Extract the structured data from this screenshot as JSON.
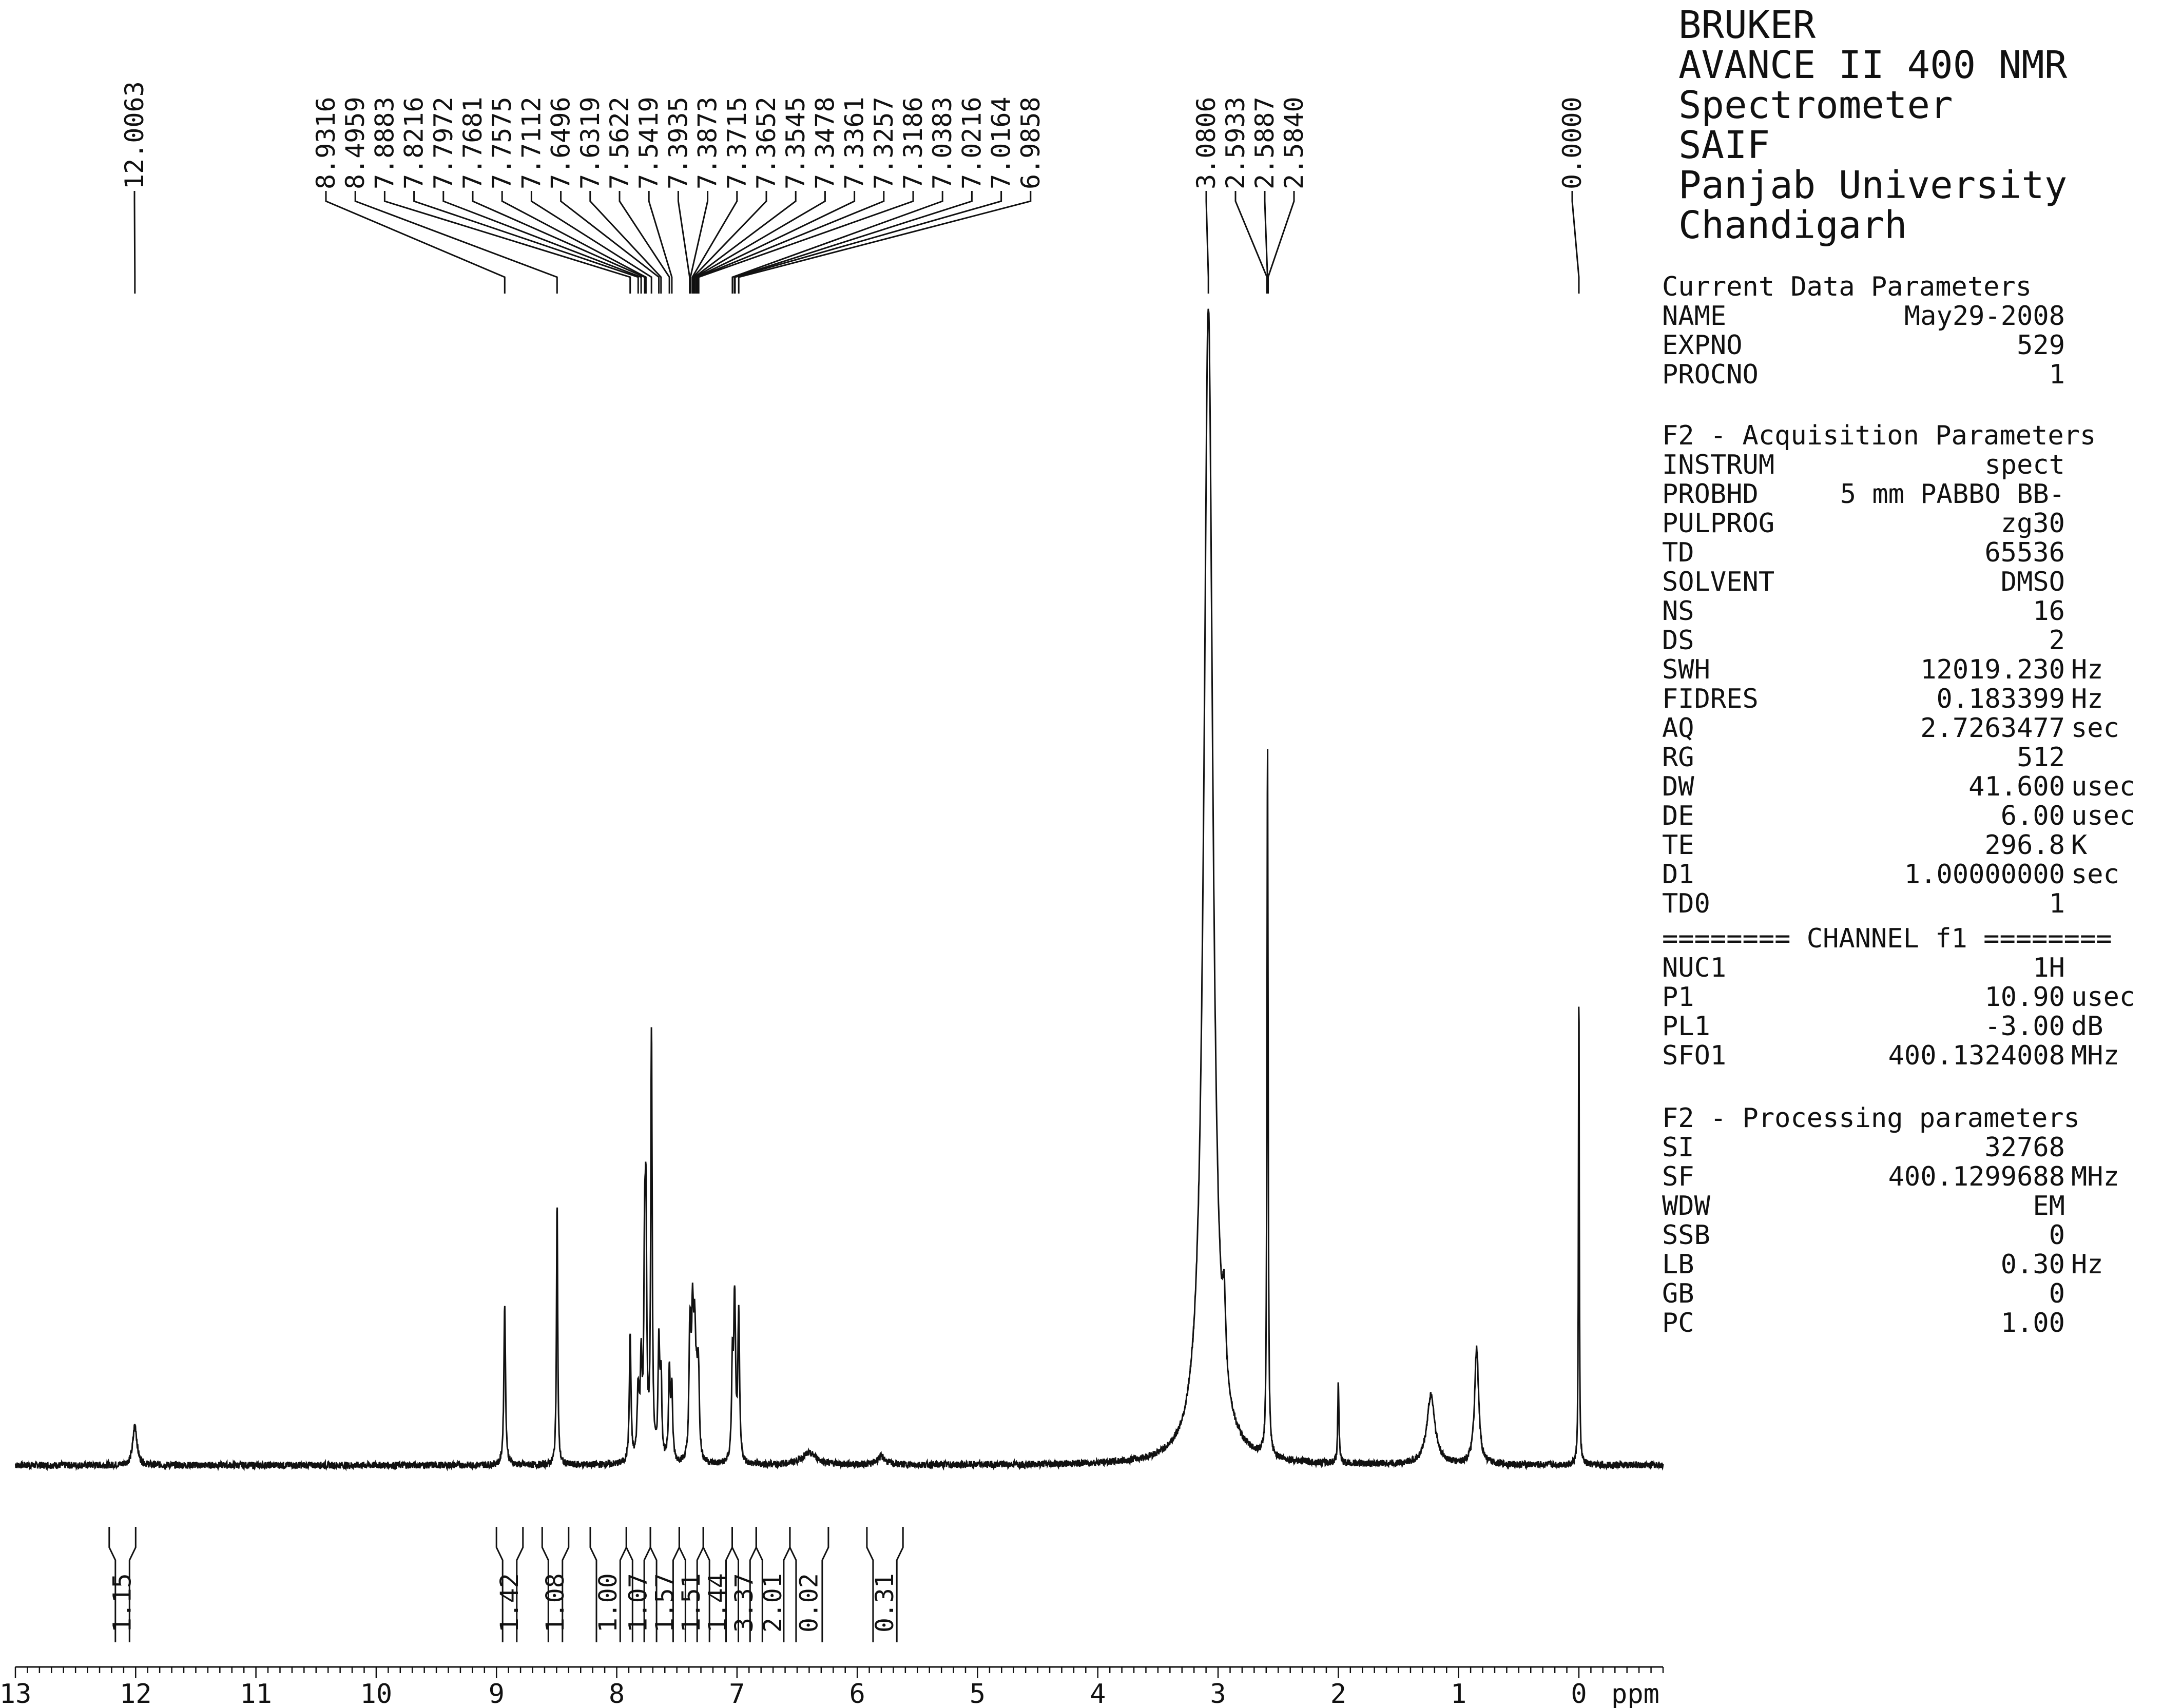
{
  "header_lines": [
    "BRUKER",
    "AVANCE II 400 NMR",
    "Spectrometer",
    "SAIF",
    "Panjab University",
    "Chandigarh"
  ],
  "current_data": {
    "title": "Current Data Parameters",
    "rows": [
      {
        "key": "NAME",
        "value": "May29-2008",
        "unit": ""
      },
      {
        "key": "EXPNO",
        "value": "529",
        "unit": ""
      },
      {
        "key": "PROCNO",
        "value": "1",
        "unit": ""
      }
    ]
  },
  "acquisition": {
    "title": "F2 - Acquisition Parameters",
    "rows": [
      {
        "key": "INSTRUM",
        "value": "spect",
        "unit": ""
      },
      {
        "key": "PROBHD",
        "value": "5 mm PABBO BB-",
        "unit": ""
      },
      {
        "key": "PULPROG",
        "value": "zg30",
        "unit": ""
      },
      {
        "key": "TD",
        "value": "65536",
        "unit": ""
      },
      {
        "key": "SOLVENT",
        "value": "DMSO",
        "unit": ""
      },
      {
        "key": "NS",
        "value": "16",
        "unit": ""
      },
      {
        "key": "DS",
        "value": "2",
        "unit": ""
      },
      {
        "key": "SWH",
        "value": "12019.230",
        "unit": "Hz"
      },
      {
        "key": "FIDRES",
        "value": "0.183399",
        "unit": "Hz"
      },
      {
        "key": "AQ",
        "value": "2.7263477",
        "unit": "sec"
      },
      {
        "key": "RG",
        "value": "512",
        "unit": ""
      },
      {
        "key": "DW",
        "value": "41.600",
        "unit": "usec"
      },
      {
        "key": "DE",
        "value": "6.00",
        "unit": "usec"
      },
      {
        "key": "TE",
        "value": "296.8",
        "unit": "K"
      },
      {
        "key": "D1",
        "value": "1.00000000",
        "unit": "sec"
      },
      {
        "key": "TD0",
        "value": "1",
        "unit": ""
      }
    ]
  },
  "channel": {
    "title": "======== CHANNEL f1 ========",
    "rows": [
      {
        "key": "NUC1",
        "value": "1H",
        "unit": ""
      },
      {
        "key": "P1",
        "value": "10.90",
        "unit": "usec"
      },
      {
        "key": "PL1",
        "value": "-3.00",
        "unit": "dB"
      },
      {
        "key": "SFO1",
        "value": "400.1324008",
        "unit": "MHz"
      }
    ]
  },
  "processing": {
    "title": "F2 - Processing parameters",
    "rows": [
      {
        "key": "SI",
        "value": "32768",
        "unit": ""
      },
      {
        "key": "SF",
        "value": "400.1299688",
        "unit": "MHz"
      },
      {
        "key": "WDW",
        "value": "EM",
        "unit": ""
      },
      {
        "key": "SSB",
        "value": "0",
        "unit": ""
      },
      {
        "key": "LB",
        "value": "0.30",
        "unit": "Hz"
      },
      {
        "key": "GB",
        "value": "0",
        "unit": ""
      },
      {
        "key": "PC",
        "value": "1.00",
        "unit": ""
      }
    ]
  },
  "chart_data": {
    "type": "line",
    "xlabel": "ppm",
    "xlim": [
      13.0,
      -0.7
    ],
    "x_reversed": true,
    "x_ticks": [
      13,
      12,
      11,
      10,
      9,
      8,
      7,
      6,
      5,
      4,
      3,
      2,
      1,
      0
    ],
    "ylim": [
      0,
      1.0
    ],
    "y_axis_shown": false,
    "grid": false,
    "colors": {
      "trace": "#111111",
      "baseline": "#111111"
    },
    "peaks": [
      {
        "ppm": 12.0063,
        "height": 0.035,
        "width": 0.02
      },
      {
        "ppm": 8.9316,
        "height": 0.14,
        "width": 0.008
      },
      {
        "ppm": 8.4959,
        "height": 0.23,
        "width": 0.006
      },
      {
        "ppm": 7.8883,
        "height": 0.11,
        "width": 0.008
      },
      {
        "ppm": 7.8216,
        "height": 0.06,
        "width": 0.01
      },
      {
        "ppm": 7.7972,
        "height": 0.08,
        "width": 0.008
      },
      {
        "ppm": 7.7681,
        "height": 0.15,
        "width": 0.008
      },
      {
        "ppm": 7.7575,
        "height": 0.19,
        "width": 0.008
      },
      {
        "ppm": 7.7112,
        "height": 0.37,
        "width": 0.007
      },
      {
        "ppm": 7.6496,
        "height": 0.1,
        "width": 0.008
      },
      {
        "ppm": 7.6319,
        "height": 0.07,
        "width": 0.008
      },
      {
        "ppm": 7.5622,
        "height": 0.08,
        "width": 0.008
      },
      {
        "ppm": 7.5419,
        "height": 0.06,
        "width": 0.008
      },
      {
        "ppm": 7.3935,
        "height": 0.07,
        "width": 0.008
      },
      {
        "ppm": 7.3873,
        "height": 0.06,
        "width": 0.008
      },
      {
        "ppm": 7.3715,
        "height": 0.08,
        "width": 0.008
      },
      {
        "ppm": 7.3652,
        "height": 0.05,
        "width": 0.008
      },
      {
        "ppm": 7.3545,
        "height": 0.06,
        "width": 0.008
      },
      {
        "ppm": 7.3478,
        "height": 0.05,
        "width": 0.008
      },
      {
        "ppm": 7.3361,
        "height": 0.04,
        "width": 0.008
      },
      {
        "ppm": 7.3257,
        "height": 0.04,
        "width": 0.008
      },
      {
        "ppm": 7.3186,
        "height": 0.05,
        "width": 0.008
      },
      {
        "ppm": 7.0383,
        "height": 0.08,
        "width": 0.008
      },
      {
        "ppm": 7.0216,
        "height": 0.09,
        "width": 0.008
      },
      {
        "ppm": 7.0164,
        "height": 0.06,
        "width": 0.008
      },
      {
        "ppm": 6.9858,
        "height": 0.13,
        "width": 0.008
      },
      {
        "ppm": 6.4,
        "height": 0.01,
        "width": 0.08
      },
      {
        "ppm": 5.8,
        "height": 0.007,
        "width": 0.04
      },
      {
        "ppm": 3.0806,
        "height": 1.0,
        "width": 0.045
      },
      {
        "ppm": 2.95,
        "height": 0.06,
        "width": 0.015
      },
      {
        "ppm": 2.5933,
        "height": 0.05,
        "width": 0.006
      },
      {
        "ppm": 2.5887,
        "height": 0.56,
        "width": 0.005
      },
      {
        "ppm": 2.584,
        "height": 0.05,
        "width": 0.006
      },
      {
        "ppm": 2.0,
        "height": 0.07,
        "width": 0.006
      },
      {
        "ppm": 1.23,
        "height": 0.06,
        "width": 0.04
      },
      {
        "ppm": 0.85,
        "height": 0.1,
        "width": 0.02
      },
      {
        "ppm": 0.0,
        "height": 0.42,
        "width": 0.004
      }
    ],
    "peak_labels": [
      {
        "group": "left",
        "labels": [
          "12.0063"
        ]
      },
      {
        "group": "aromatic",
        "labels": [
          "8.9316",
          "8.4959",
          "7.8883",
          "7.8216",
          "7.7972",
          "7.7681",
          "7.7575",
          "7.7112",
          "7.6496",
          "7.6319",
          "7.5622",
          "7.5419",
          "7.3935",
          "7.3873",
          "7.3715",
          "7.3652",
          "7.3545",
          "7.3478",
          "7.3361",
          "7.3257",
          "7.3186",
          "7.0383",
          "7.0216",
          "7.0164",
          "6.9858"
        ]
      },
      {
        "group": "aliphatic",
        "labels": [
          "3.0806",
          "2.5933",
          "2.5887",
          "2.5840"
        ]
      },
      {
        "group": "tms",
        "labels": [
          "0.0000"
        ]
      }
    ],
    "integrals": [
      {
        "from": 12.22,
        "to": 12.0,
        "value": "1.15"
      },
      {
        "from": 9.0,
        "to": 8.78,
        "value": "1.42"
      },
      {
        "from": 8.62,
        "to": 8.4,
        "value": "1.08"
      },
      {
        "from": 8.22,
        "to": 7.92,
        "value": "1.00"
      },
      {
        "from": 7.92,
        "to": 7.72,
        "value": "1.07"
      },
      {
        "from": 7.72,
        "to": 7.48,
        "value": "1.57"
      },
      {
        "from": 7.48,
        "to": 7.28,
        "value": "1.51"
      },
      {
        "from": 7.28,
        "to": 7.04,
        "value": "1.44"
      },
      {
        "from": 7.04,
        "to": 6.84,
        "value": "3.37"
      },
      {
        "from": 6.84,
        "to": 6.56,
        "value": "2.01"
      },
      {
        "from": 6.56,
        "to": 6.24,
        "value": "0.02"
      },
      {
        "from": 5.92,
        "to": 5.62,
        "value": "0.31"
      }
    ]
  }
}
